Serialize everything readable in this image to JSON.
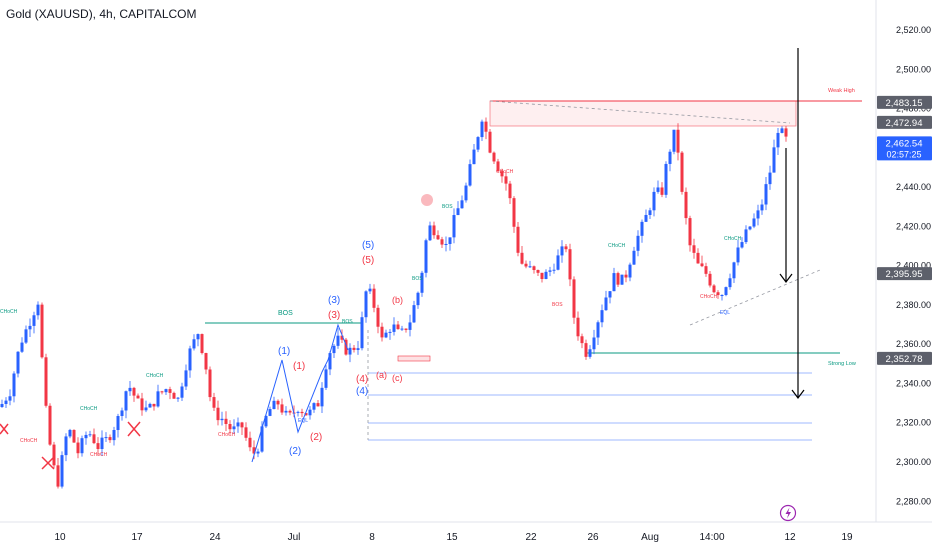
{
  "header": {
    "title": "Gold (XAUUSD), 4h, CAPITALCOM"
  },
  "colors": {
    "up": "#2962ff",
    "down": "#f23645",
    "green": "#089981",
    "blue": "#2962ff",
    "red": "#f23645",
    "axis_text": "#131722"
  },
  "chart_data": {
    "type": "candlestick",
    "title": "Gold (XAUUSD), 4h, CAPITALCOM",
    "ylim": [
      2270,
      2530
    ],
    "y_ticks": [
      "2,520.00",
      "2,500.00",
      "2,480.00",
      "2,460.00",
      "2,440.00",
      "2,420.00",
      "2,400.00",
      "2,380.00",
      "2,360.00",
      "2,340.00",
      "2,320.00",
      "2,300.00",
      "2,280.00"
    ],
    "y_tick_values": [
      2520,
      2500,
      2480,
      2460,
      2440,
      2420,
      2400,
      2380,
      2360,
      2340,
      2320,
      2300,
      2280
    ],
    "x_ticks": [
      "10",
      "17",
      "24",
      "Jul",
      "8",
      "15",
      "22",
      "26",
      "Aug",
      "14:00",
      "12",
      "19"
    ],
    "price_labels": [
      {
        "value": 2483.15,
        "text": "2,483.15",
        "style": "gray"
      },
      {
        "value": 2472.94,
        "text": "2,472.94",
        "style": "gray"
      },
      {
        "value": 2462.54,
        "text": "2,462.54",
        "style": "blue",
        "sub": "02:57:25"
      },
      {
        "value": 2395.95,
        "text": "2,395.95",
        "style": "gray"
      },
      {
        "value": 2352.78,
        "text": "2,352.78",
        "style": "gray"
      }
    ],
    "path": [
      [
        0,
        2328
      ],
      [
        10,
        2336
      ],
      [
        20,
        2360
      ],
      [
        30,
        2372
      ],
      [
        38,
        2382
      ],
      [
        45,
        2330
      ],
      [
        52,
        2300
      ],
      [
        58,
        2290
      ],
      [
        68,
        2318
      ],
      [
        78,
        2305
      ],
      [
        88,
        2316
      ],
      [
        98,
        2308
      ],
      [
        108,
        2312
      ],
      [
        118,
        2322
      ],
      [
        128,
        2340
      ],
      [
        138,
        2330
      ],
      [
        148,
        2326
      ],
      [
        158,
        2334
      ],
      [
        168,
        2338
      ],
      [
        178,
        2332
      ],
      [
        188,
        2354
      ],
      [
        198,
        2366
      ],
      [
        205,
        2352
      ],
      [
        212,
        2326
      ],
      [
        222,
        2322
      ],
      [
        232,
        2316
      ],
      [
        242,
        2318
      ],
      [
        252,
        2303
      ],
      [
        258,
        2308
      ],
      [
        268,
        2326
      ],
      [
        278,
        2330
      ],
      [
        288,
        2322
      ],
      [
        298,
        2328
      ],
      [
        308,
        2324
      ],
      [
        318,
        2330
      ],
      [
        328,
        2355
      ],
      [
        338,
        2362
      ],
      [
        348,
        2356
      ],
      [
        358,
        2360
      ],
      [
        362,
        2372
      ],
      [
        367,
        2390
      ],
      [
        375,
        2378
      ],
      [
        382,
        2362
      ],
      [
        392,
        2370
      ],
      [
        400,
        2364
      ],
      [
        410,
        2372
      ],
      [
        420,
        2390
      ],
      [
        428,
        2420
      ],
      [
        436,
        2418
      ],
      [
        446,
        2410
      ],
      [
        456,
        2426
      ],
      [
        466,
        2440
      ],
      [
        474,
        2458
      ],
      [
        482,
        2476
      ],
      [
        490,
        2460
      ],
      [
        500,
        2448
      ],
      [
        508,
        2440
      ],
      [
        514,
        2420
      ],
      [
        520,
        2402
      ],
      [
        530,
        2398
      ],
      [
        540,
        2394
      ],
      [
        548,
        2396
      ],
      [
        558,
        2404
      ],
      [
        566,
        2410
      ],
      [
        573,
        2376
      ],
      [
        580,
        2362
      ],
      [
        587,
        2355
      ],
      [
        595,
        2368
      ],
      [
        604,
        2382
      ],
      [
        614,
        2394
      ],
      [
        624,
        2392
      ],
      [
        634,
        2410
      ],
      [
        644,
        2422
      ],
      [
        654,
        2436
      ],
      [
        662,
        2438
      ],
      [
        668,
        2456
      ],
      [
        676,
        2470
      ],
      [
        682,
        2436
      ],
      [
        690,
        2410
      ],
      [
        698,
        2400
      ],
      [
        706,
        2396
      ],
      [
        714,
        2388
      ],
      [
        722,
        2386
      ],
      [
        730,
        2396
      ],
      [
        740,
        2410
      ],
      [
        750,
        2420
      ],
      [
        760,
        2428
      ],
      [
        770,
        2448
      ],
      [
        778,
        2470
      ],
      [
        786,
        2464
      ],
      [
        788,
        2462.5
      ]
    ]
  },
  "annotations": {
    "bos": "BOS",
    "choch": "CHoCH",
    "eql": "EQL",
    "weak_high": "Weak High",
    "strong_low": "Strong Low",
    "w1": "(1)",
    "w2": "(2)",
    "w3": "(3)",
    "w4": "(4)",
    "w5": "(5)",
    "wa": "(a)",
    "wb": "(b)",
    "wc": "(c)"
  }
}
